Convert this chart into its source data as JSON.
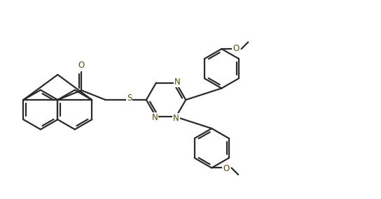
{
  "bg_color": "#ffffff",
  "bond_color": "#2a2a2a",
  "heteroatom_color": "#5a4a00",
  "line_width": 1.6,
  "figsize": [
    5.44,
    2.85
  ],
  "dpi": 100,
  "xlim": [
    0,
    11.0
  ],
  "ylim": [
    0,
    5.8
  ]
}
